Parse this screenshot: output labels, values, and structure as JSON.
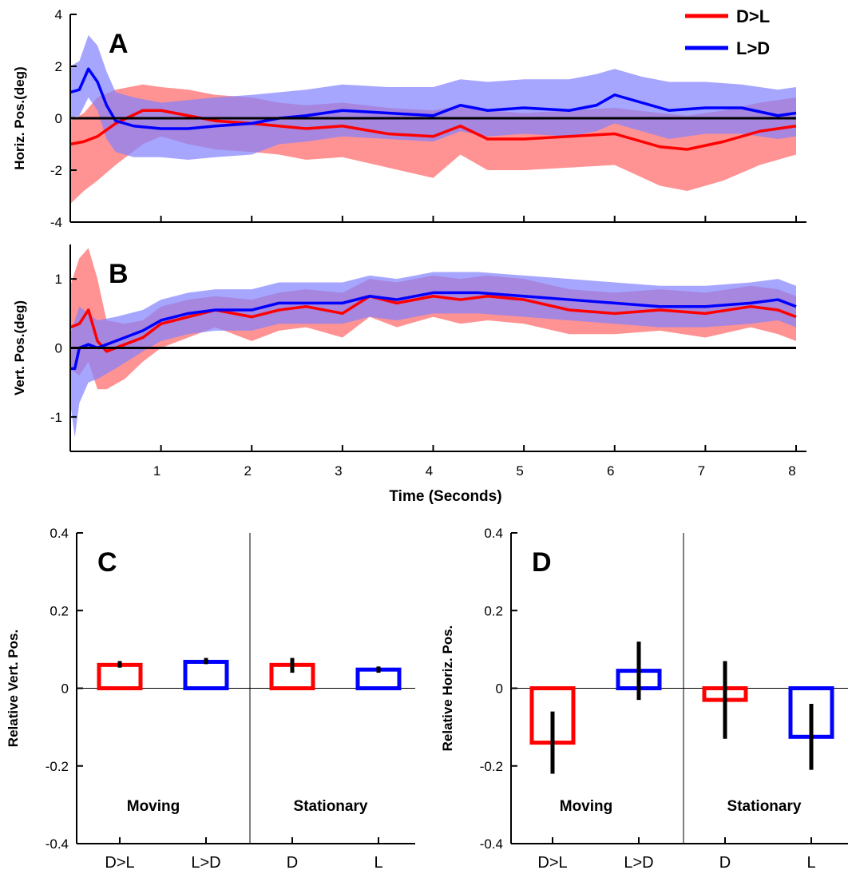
{
  "legend": {
    "placement": "top-right",
    "entries": [
      {
        "label": "D>L",
        "color": "#ff0000"
      },
      {
        "label": "L>D",
        "color": "#0000ff"
      }
    ]
  },
  "colors": {
    "dl": "#ff0000",
    "ld": "#0000ff",
    "dl_band": "#ff8080",
    "ld_band": "#8080ff"
  },
  "chart_data": [
    {
      "id": "A",
      "type": "line",
      "panel_letter": "A",
      "ylabel": "Horiz. Pos.(deg)",
      "xlabel": "",
      "xlim": [
        0,
        8
      ],
      "ylim": [
        -4,
        4
      ],
      "yticks": [
        4,
        2,
        0,
        -2,
        -4
      ],
      "xticks": [
        1,
        2,
        3,
        4,
        5,
        6,
        7,
        8
      ],
      "show_xtick_labels": false,
      "zero_line": true,
      "series": [
        {
          "name": "D>L",
          "key": "dl",
          "x": [
            0.0,
            0.15,
            0.3,
            0.5,
            0.8,
            1.0,
            1.3,
            1.6,
            2.0,
            2.3,
            2.6,
            3.0,
            3.5,
            4.0,
            4.3,
            4.6,
            5.0,
            5.5,
            6.0,
            6.5,
            6.8,
            7.2,
            7.6,
            8.0
          ],
          "y": [
            -1.0,
            -0.9,
            -0.7,
            -0.2,
            0.3,
            0.3,
            0.1,
            -0.1,
            -0.2,
            -0.3,
            -0.4,
            -0.3,
            -0.6,
            -0.7,
            -0.3,
            -0.8,
            -0.8,
            -0.7,
            -0.6,
            -1.1,
            -1.2,
            -0.9,
            -0.5,
            -0.3
          ],
          "upper": [
            -0.1,
            0.2,
            0.8,
            1.1,
            1.3,
            1.2,
            1.1,
            0.9,
            0.8,
            0.6,
            0.5,
            0.6,
            0.4,
            0.3,
            0.5,
            0.3,
            0.2,
            0.3,
            0.4,
            0.2,
            0.1,
            0.3,
            0.6,
            0.8
          ],
          "lower": [
            -3.3,
            -2.8,
            -2.4,
            -1.8,
            -1.0,
            -0.7,
            -1.0,
            -1.2,
            -1.3,
            -1.4,
            -1.6,
            -1.5,
            -1.9,
            -2.3,
            -1.4,
            -2.0,
            -2.0,
            -1.9,
            -1.8,
            -2.6,
            -2.8,
            -2.4,
            -1.8,
            -1.4
          ]
        },
        {
          "name": "L>D",
          "key": "ld",
          "x": [
            0.0,
            0.1,
            0.2,
            0.3,
            0.4,
            0.5,
            0.7,
            1.0,
            1.3,
            1.6,
            2.0,
            2.3,
            2.6,
            3.0,
            3.5,
            4.0,
            4.3,
            4.6,
            5.0,
            5.5,
            5.8,
            6.0,
            6.3,
            6.6,
            7.0,
            7.4,
            7.8,
            8.0
          ],
          "y": [
            1.0,
            1.1,
            1.9,
            1.4,
            0.5,
            -0.1,
            -0.3,
            -0.4,
            -0.4,
            -0.3,
            -0.2,
            0.0,
            0.1,
            0.3,
            0.2,
            0.1,
            0.5,
            0.3,
            0.4,
            0.3,
            0.5,
            0.9,
            0.6,
            0.3,
            0.4,
            0.4,
            0.1,
            0.2
          ],
          "upper": [
            2.0,
            2.2,
            3.2,
            2.8,
            1.8,
            1.0,
            0.8,
            0.6,
            0.7,
            0.8,
            0.9,
            1.0,
            1.1,
            1.3,
            1.2,
            1.2,
            1.5,
            1.4,
            1.5,
            1.5,
            1.7,
            1.9,
            1.6,
            1.4,
            1.4,
            1.3,
            1.1,
            1.2
          ],
          "lower": [
            0.0,
            0.1,
            0.8,
            0.3,
            -0.8,
            -1.3,
            -1.5,
            -1.5,
            -1.6,
            -1.5,
            -1.4,
            -1.0,
            -0.9,
            -0.7,
            -0.8,
            -0.9,
            -0.5,
            -0.7,
            -0.6,
            -0.7,
            -0.5,
            -0.2,
            -0.5,
            -0.8,
            -0.6,
            -0.6,
            -0.8,
            -0.7
          ]
        }
      ]
    },
    {
      "id": "B",
      "type": "line",
      "panel_letter": "B",
      "ylabel": "Vert. Pos.(deg)",
      "xlabel": "Time (Seconds)",
      "xlim": [
        0,
        8
      ],
      "ylim": [
        -1.5,
        1.5
      ],
      "yticks": [
        1,
        0,
        -1
      ],
      "xticks": [
        1,
        2,
        3,
        4,
        5,
        6,
        7,
        8
      ],
      "show_xtick_labels": true,
      "zero_line": true,
      "series": [
        {
          "name": "D>L",
          "key": "dl",
          "x": [
            0.0,
            0.1,
            0.2,
            0.3,
            0.4,
            0.6,
            0.8,
            1.0,
            1.3,
            1.6,
            2.0,
            2.3,
            2.6,
            3.0,
            3.3,
            3.6,
            4.0,
            4.3,
            4.6,
            5.0,
            5.5,
            6.0,
            6.5,
            7.0,
            7.5,
            7.8,
            8.0
          ],
          "y": [
            0.3,
            0.35,
            0.55,
            0.1,
            -0.05,
            0.05,
            0.15,
            0.35,
            0.45,
            0.55,
            0.45,
            0.55,
            0.6,
            0.5,
            0.75,
            0.65,
            0.75,
            0.7,
            0.75,
            0.7,
            0.55,
            0.5,
            0.55,
            0.5,
            0.6,
            0.55,
            0.45
          ],
          "upper": [
            0.9,
            1.3,
            1.45,
            1.0,
            0.4,
            0.35,
            0.4,
            0.6,
            0.7,
            0.75,
            0.7,
            0.8,
            0.85,
            0.8,
            1.0,
            0.95,
            1.05,
            1.0,
            1.05,
            1.0,
            0.85,
            0.8,
            0.85,
            0.8,
            0.9,
            0.85,
            0.75
          ],
          "lower": [
            -0.3,
            -0.4,
            -0.2,
            -0.6,
            -0.6,
            -0.45,
            -0.2,
            0.0,
            0.15,
            0.3,
            0.1,
            0.25,
            0.3,
            0.15,
            0.45,
            0.3,
            0.45,
            0.35,
            0.4,
            0.35,
            0.2,
            0.2,
            0.25,
            0.15,
            0.3,
            0.2,
            0.1
          ]
        },
        {
          "name": "L>D",
          "key": "ld",
          "x": [
            0.0,
            0.05,
            0.1,
            0.2,
            0.3,
            0.5,
            0.8,
            1.0,
            1.3,
            1.6,
            2.0,
            2.3,
            2.6,
            3.0,
            3.3,
            3.6,
            4.0,
            4.5,
            5.0,
            5.5,
            6.0,
            6.5,
            7.0,
            7.5,
            7.8,
            8.0
          ],
          "y": [
            -0.3,
            -0.3,
            0.0,
            0.05,
            0.0,
            0.1,
            0.25,
            0.4,
            0.5,
            0.55,
            0.55,
            0.65,
            0.65,
            0.65,
            0.75,
            0.7,
            0.8,
            0.8,
            0.75,
            0.7,
            0.65,
            0.6,
            0.6,
            0.65,
            0.7,
            0.6
          ],
          "upper": [
            0.2,
            0.4,
            0.6,
            0.5,
            0.4,
            0.45,
            0.55,
            0.7,
            0.8,
            0.85,
            0.85,
            0.95,
            0.95,
            0.95,
            1.05,
            1.0,
            1.1,
            1.1,
            1.05,
            1.0,
            0.95,
            0.9,
            0.9,
            0.95,
            1.0,
            0.9
          ],
          "lower": [
            -0.8,
            -1.3,
            -0.8,
            -0.5,
            -0.45,
            -0.3,
            -0.05,
            0.1,
            0.2,
            0.25,
            0.25,
            0.35,
            0.35,
            0.35,
            0.45,
            0.4,
            0.5,
            0.5,
            0.45,
            0.4,
            0.35,
            0.3,
            0.3,
            0.35,
            0.4,
            0.3
          ]
        }
      ]
    },
    {
      "id": "C",
      "type": "bar",
      "panel_letter": "C",
      "ylabel": "Relative Vert. Pos.",
      "ylim": [
        -0.4,
        0.4
      ],
      "yticks": [
        "0.4",
        "0.2",
        "0",
        "-0.2",
        "-0.4"
      ],
      "categories": [
        "D>L",
        "L>D",
        "D",
        "L"
      ],
      "values": [
        0.06,
        0.068,
        0.06,
        0.048
      ],
      "err_low": [
        0.053,
        0.062,
        0.04,
        0.04
      ],
      "err_high": [
        0.07,
        0.078,
        0.078,
        0.056
      ],
      "bar_keys": [
        "dl",
        "ld",
        "dl",
        "ld"
      ],
      "group_labels": [
        "Moving",
        "Stationary"
      ]
    },
    {
      "id": "D",
      "type": "bar",
      "panel_letter": "D",
      "ylabel": "Relative Horiz. Pos.",
      "ylim": [
        -0.4,
        0.4
      ],
      "yticks": [
        "0.4",
        "0.2",
        "0",
        "-0.2",
        "-0.4"
      ],
      "categories": [
        "D>L",
        "L>D",
        "D",
        "L"
      ],
      "values": [
        -0.14,
        0.045,
        -0.03,
        -0.125
      ],
      "err_low": [
        -0.22,
        -0.03,
        -0.13,
        -0.21
      ],
      "err_high": [
        -0.06,
        0.12,
        0.07,
        -0.04
      ],
      "bar_keys": [
        "dl",
        "ld",
        "dl",
        "ld"
      ],
      "group_labels": [
        "Moving",
        "Stationary"
      ]
    }
  ]
}
